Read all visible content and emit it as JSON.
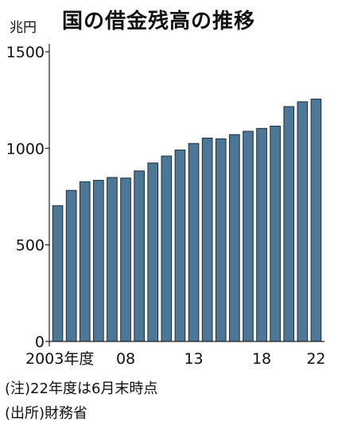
{
  "chart_data": {
    "type": "bar",
    "title": "国の借金残高の推移",
    "unit_label": "兆円",
    "xlabel": "",
    "ylabel": "",
    "ylim": [
      0,
      1600
    ],
    "yticks": [
      0,
      500,
      1000,
      1500
    ],
    "grid": false,
    "legend": "none",
    "bar_color": "#4c7796",
    "bar_edge_color": "#1c2e3b",
    "categories": [
      "2003",
      "2004",
      "2005",
      "2006",
      "2007",
      "2008",
      "2009",
      "2010",
      "2011",
      "2012",
      "2013",
      "2014",
      "2015",
      "2016",
      "2017",
      "2018",
      "2019",
      "2020",
      "2021",
      "2022"
    ],
    "values": [
      703,
      782,
      827,
      834,
      849,
      846,
      883,
      924,
      960,
      991,
      1025,
      1053,
      1049,
      1071,
      1088,
      1103,
      1115,
      1216,
      1241,
      1255
    ],
    "xtick_labels": [
      {
        "index": 0,
        "label": "2003年度"
      },
      {
        "index": 5,
        "label": "08"
      },
      {
        "index": 10,
        "label": "13"
      },
      {
        "index": 15,
        "label": "18"
      },
      {
        "index": 19,
        "label": "22"
      }
    ]
  },
  "notes": {
    "note1": "(注)22年度は6月末時点",
    "note2": "(出所)財務省"
  }
}
